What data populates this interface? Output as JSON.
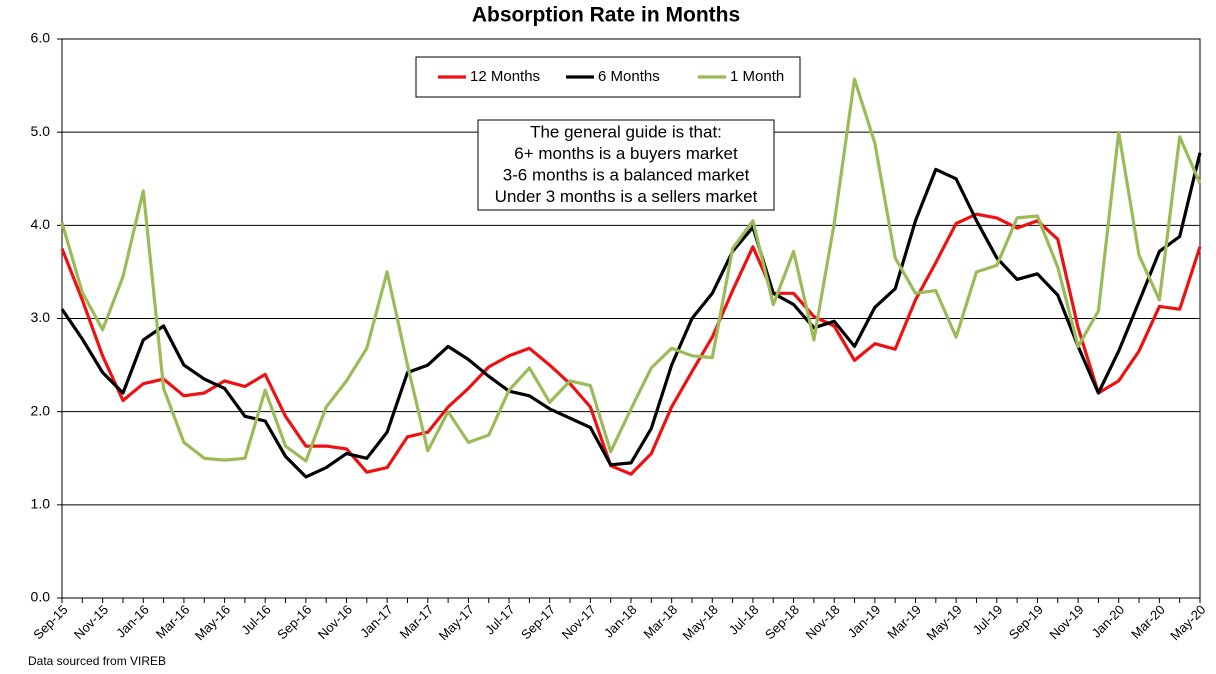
{
  "chart_data": {
    "type": "line",
    "title": "Absorption Rate in Months",
    "categories": [
      "Sep-15",
      null,
      "Nov-15",
      null,
      "Jan-16",
      null,
      "Mar-16",
      null,
      "May-16",
      null,
      "Jul-16",
      null,
      "Sep-16",
      null,
      "Nov-16",
      null,
      "Jan-17",
      null,
      "Mar-17",
      null,
      "May-17",
      null,
      "Jul-17",
      null,
      "Sep-17",
      null,
      "Nov-17",
      null,
      "Jan-18",
      null,
      "Mar-18",
      null,
      "May-18",
      null,
      "Jul-18",
      null,
      "Sep-18",
      null,
      "Nov-18",
      null,
      "Jan-19",
      null,
      "Mar-19",
      null,
      "May-19",
      null,
      "Jul-19",
      null,
      "Sep-19",
      null,
      "Nov-19",
      null,
      "Jan-20",
      null,
      "Mar-20",
      null,
      "May-20"
    ],
    "series": [
      {
        "name": "12 Months",
        "color": "#ee1111",
        "values": [
          3.75,
          3.2,
          2.6,
          2.12,
          2.3,
          2.35,
          2.17,
          2.2,
          2.33,
          2.27,
          2.4,
          1.95,
          1.63,
          1.63,
          1.6,
          1.35,
          1.4,
          1.73,
          1.78,
          2.05,
          2.25,
          2.48,
          2.6,
          2.68,
          2.5,
          2.3,
          2.05,
          1.42,
          1.33,
          1.55,
          2.05,
          2.43,
          2.8,
          3.3,
          3.77,
          3.27,
          3.27,
          3.02,
          2.92,
          2.55,
          2.73,
          2.67,
          3.2,
          3.6,
          4.02,
          4.12,
          4.08,
          3.97,
          4.05,
          3.85,
          2.9,
          2.2,
          2.33,
          2.65,
          3.13,
          3.1,
          3.77
        ]
      },
      {
        "name": "6 Months",
        "color": "#000000",
        "values": [
          3.1,
          2.78,
          2.42,
          2.2,
          2.77,
          2.92,
          2.5,
          2.35,
          2.25,
          1.95,
          1.9,
          1.52,
          1.3,
          1.4,
          1.55,
          1.5,
          1.78,
          2.42,
          2.5,
          2.7,
          2.56,
          2.38,
          2.22,
          2.17,
          2.03,
          1.93,
          1.83,
          1.43,
          1.45,
          1.82,
          2.5,
          3.0,
          3.27,
          3.72,
          3.98,
          3.27,
          3.15,
          2.9,
          2.97,
          2.7,
          3.12,
          3.32,
          4.05,
          4.6,
          4.5,
          4.05,
          3.65,
          3.42,
          3.48,
          3.25,
          2.7,
          2.2,
          2.65,
          3.18,
          3.72,
          3.88,
          4.78
        ]
      },
      {
        "name": "1 Month",
        "color": "#9bbb59",
        "values": [
          4.03,
          3.28,
          2.88,
          3.45,
          4.37,
          2.25,
          1.67,
          1.5,
          1.48,
          1.5,
          2.23,
          1.63,
          1.47,
          2.05,
          2.33,
          2.68,
          3.5,
          2.5,
          1.58,
          2.0,
          1.67,
          1.75,
          2.23,
          2.47,
          2.1,
          2.33,
          2.28,
          1.57,
          2.03,
          2.47,
          2.68,
          2.6,
          2.58,
          3.75,
          4.05,
          3.15,
          3.72,
          2.77,
          4.02,
          5.57,
          4.88,
          3.65,
          3.27,
          3.3,
          2.8,
          3.5,
          3.57,
          4.08,
          4.1,
          3.55,
          2.7,
          3.08,
          5.0,
          3.68,
          3.2,
          4.95,
          4.45
        ]
      }
    ],
    "ylim": [
      0,
      6
    ],
    "yticks": [
      {
        "value": 0,
        "label": "0.0"
      },
      {
        "value": 1,
        "label": "1.0"
      },
      {
        "value": 2,
        "label": "2.0"
      },
      {
        "value": 3,
        "label": "3.0"
      },
      {
        "value": 4,
        "label": "4.0"
      },
      {
        "value": 5,
        "label": "5.0"
      },
      {
        "value": 6,
        "label": "6.0"
      }
    ],
    "grid": true,
    "legend": "top",
    "annotation": [
      "The general guide is that:",
      "6+ months is a buyers market",
      "3-6 months is a balanced market",
      "Under 3 months is a sellers market"
    ],
    "source": "Data sourced from VIREB"
  }
}
